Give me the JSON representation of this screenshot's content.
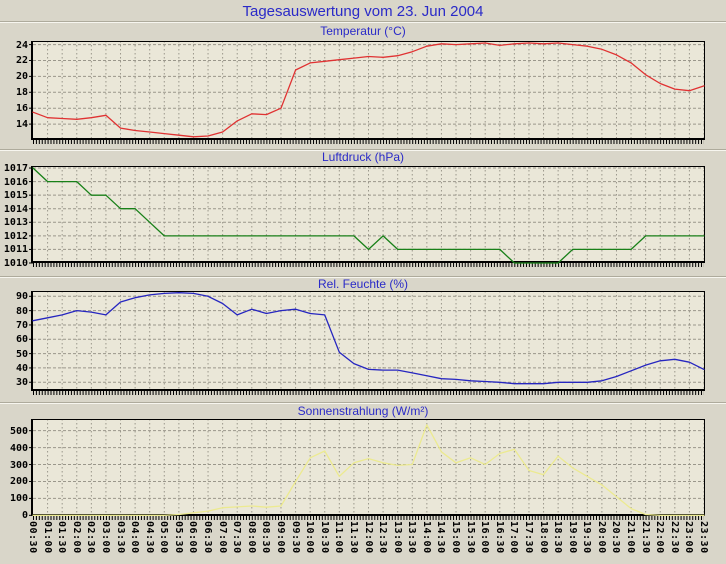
{
  "page_title": "Tagesauswertung vom 23. Jun 2004",
  "colors": {
    "page_bg": "#d9d6c9",
    "plot_bg": "#eae7d8",
    "grid": "#9a978b",
    "axis": "#000000",
    "title_text": "#2a2ac8",
    "temperature_line": "#e03232",
    "pressure_line": "#188018",
    "humidity_line": "#2626c0",
    "sun_line": "#ecea90"
  },
  "x_axis_labels": [
    "00:30",
    "01:00",
    "01:30",
    "02:00",
    "02:30",
    "03:00",
    "03:30",
    "04:00",
    "04:30",
    "05:00",
    "05:30",
    "06:00",
    "06:30",
    "07:00",
    "07:30",
    "08:00",
    "08:30",
    "09:00",
    "09:30",
    "10:00",
    "10:30",
    "11:00",
    "11:30",
    "12:00",
    "12:30",
    "13:00",
    "13:30",
    "14:00",
    "14:30",
    "15:00",
    "15:30",
    "16:00",
    "16:30",
    "17:00",
    "17:30",
    "18:00",
    "18:30",
    "19:00",
    "19:30",
    "20:00",
    "20:30",
    "21:00",
    "21:30",
    "22:00",
    "22:30",
    "23:00",
    "23:30"
  ],
  "chart_data": [
    {
      "id": "temperature",
      "type": "line",
      "title": "Temperatur (°C)",
      "color": "#e03232",
      "y_ticks": [
        14,
        16,
        18,
        20,
        22,
        24
      ],
      "ylim": [
        12.0,
        24.45
      ],
      "grid": true,
      "values": [
        15.5,
        14.8,
        14.7,
        14.6,
        14.8,
        15.1,
        13.5,
        13.2,
        13.0,
        12.8,
        12.6,
        12.4,
        12.5,
        13.0,
        14.4,
        15.3,
        15.2,
        16.0,
        20.8,
        21.7,
        21.9,
        22.1,
        22.3,
        22.5,
        22.4,
        22.6,
        23.1,
        23.8,
        24.1,
        24.0,
        24.1,
        24.2,
        23.9,
        24.1,
        24.2,
        24.1,
        24.2,
        24.0,
        23.8,
        23.4,
        22.7,
        21.7,
        20.2,
        19.1,
        18.4,
        18.2,
        18.8
      ]
    },
    {
      "id": "pressure",
      "type": "line",
      "title": "Luftdruck (hPa)",
      "color": "#188018",
      "y_ticks": [
        1010,
        1011,
        1012,
        1013,
        1014,
        1015,
        1016,
        1017
      ],
      "ylim": [
        1010,
        1017.15
      ],
      "grid": true,
      "values": [
        1017,
        1016,
        1016,
        1016,
        1015,
        1015,
        1014,
        1014,
        1013,
        1012,
        1012,
        1012,
        1012,
        1012,
        1012,
        1012,
        1012,
        1012,
        1012,
        1012,
        1012,
        1012,
        1012,
        1011,
        1012,
        1011,
        1011,
        1011,
        1011,
        1011,
        1011,
        1011,
        1011,
        1010,
        1010,
        1010,
        1010,
        1011,
        1011,
        1011,
        1011,
        1011,
        1012,
        1012,
        1012,
        1012,
        1012
      ]
    },
    {
      "id": "humidity",
      "type": "line",
      "title": "Rel. Feuchte (%)",
      "color": "#2626c0",
      "y_ticks": [
        30,
        40,
        50,
        60,
        70,
        80,
        90
      ],
      "ylim": [
        23.9,
        93.7
      ],
      "grid": true,
      "values": [
        73,
        75,
        77,
        80,
        79,
        77,
        86,
        89,
        91,
        92,
        92.5,
        92,
        90,
        85,
        77,
        81,
        78,
        80,
        81,
        78,
        77,
        51,
        43,
        39,
        38.5,
        38.5,
        36.5,
        34.5,
        32.5,
        32,
        31,
        30.5,
        30,
        29,
        29,
        29,
        30,
        30,
        30,
        31,
        34,
        38,
        42,
        45,
        46,
        44,
        39
      ]
    },
    {
      "id": "sun",
      "type": "line",
      "title": "Sonnenstrahlung (W/m²)",
      "color": "#ecea90",
      "y_ticks": [
        0,
        100,
        200,
        300,
        400,
        500
      ],
      "ylim": [
        -4,
        569
      ],
      "grid": true,
      "values": [
        0,
        0,
        0,
        0,
        0,
        0,
        0,
        0,
        0,
        0,
        5,
        15,
        25,
        45,
        50,
        55,
        48,
        55,
        200,
        340,
        380,
        230,
        310,
        335,
        310,
        295,
        300,
        535,
        375,
        310,
        340,
        300,
        365,
        390,
        265,
        240,
        350,
        280,
        230,
        180,
        110,
        40,
        5,
        0,
        0,
        0,
        0
      ]
    }
  ]
}
